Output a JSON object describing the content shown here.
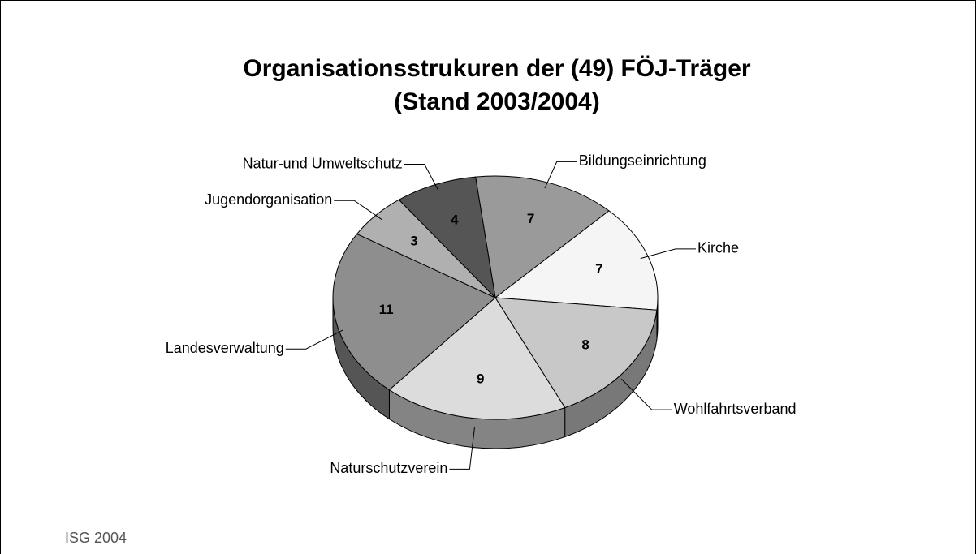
{
  "chart_data": {
    "type": "pie",
    "title": "Organisationsstrukuren der (49) FÖJ-Träger",
    "subtitle": "(Stand 2003/2004)",
    "categories": [
      "Bildungseinrichtung",
      "Kirche",
      "Wohlfahrtsverband",
      "Naturschutzverein",
      "Landesverwaltung",
      "Jugendorganisation",
      "Natur-und Umweltschutz"
    ],
    "values": [
      7,
      7,
      8,
      9,
      11,
      3,
      4
    ],
    "colors": [
      "#9a9a9a",
      "#f5f5f5",
      "#c8c8c8",
      "#dcdcdc",
      "#8e8e8e",
      "#b0b0b0",
      "#555555"
    ],
    "source": "ISG 2004"
  }
}
